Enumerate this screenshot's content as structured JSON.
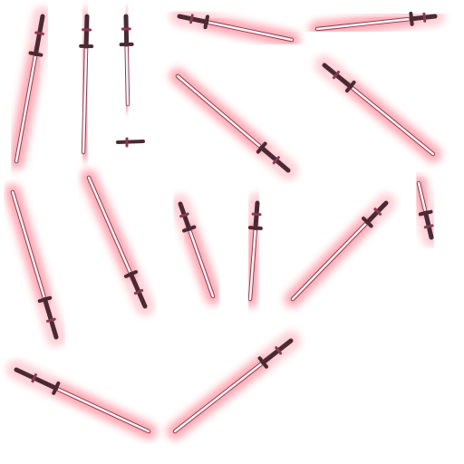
{
  "sprite_sheet": {
    "background_color": "#ffffff",
    "glow_color": "#ff7f8f",
    "blade_color": "#f4f1f3",
    "blade_edge_color": "#8b3a4f",
    "hilt_color": "#4a2a34",
    "sprites": [
      {
        "id": "sword-01",
        "kind": "sword"
      },
      {
        "id": "sword-02",
        "kind": "sword"
      },
      {
        "id": "sword-03",
        "kind": "sword"
      },
      {
        "id": "sword-04",
        "kind": "sword"
      },
      {
        "id": "sword-05",
        "kind": "sword"
      },
      {
        "id": "sword-06",
        "kind": "sword"
      },
      {
        "id": "sword-07",
        "kind": "sword"
      },
      {
        "id": "sword-08",
        "kind": "sword"
      },
      {
        "id": "sword-09",
        "kind": "sword"
      },
      {
        "id": "sword-10",
        "kind": "sword"
      },
      {
        "id": "sword-11",
        "kind": "sword"
      },
      {
        "id": "sword-12",
        "kind": "sword"
      },
      {
        "id": "sword-13",
        "kind": "sword"
      },
      {
        "id": "sword-14",
        "kind": "sword"
      },
      {
        "id": "sword-15",
        "kind": "sword"
      },
      {
        "id": "sword-16",
        "kind": "sword"
      },
      {
        "id": "sword-17",
        "kind": "sword"
      },
      {
        "id": "sword-18",
        "kind": "sword"
      },
      {
        "id": "sword-19",
        "kind": "sword"
      },
      {
        "id": "hilt-fragment",
        "kind": "fragment"
      }
    ]
  }
}
